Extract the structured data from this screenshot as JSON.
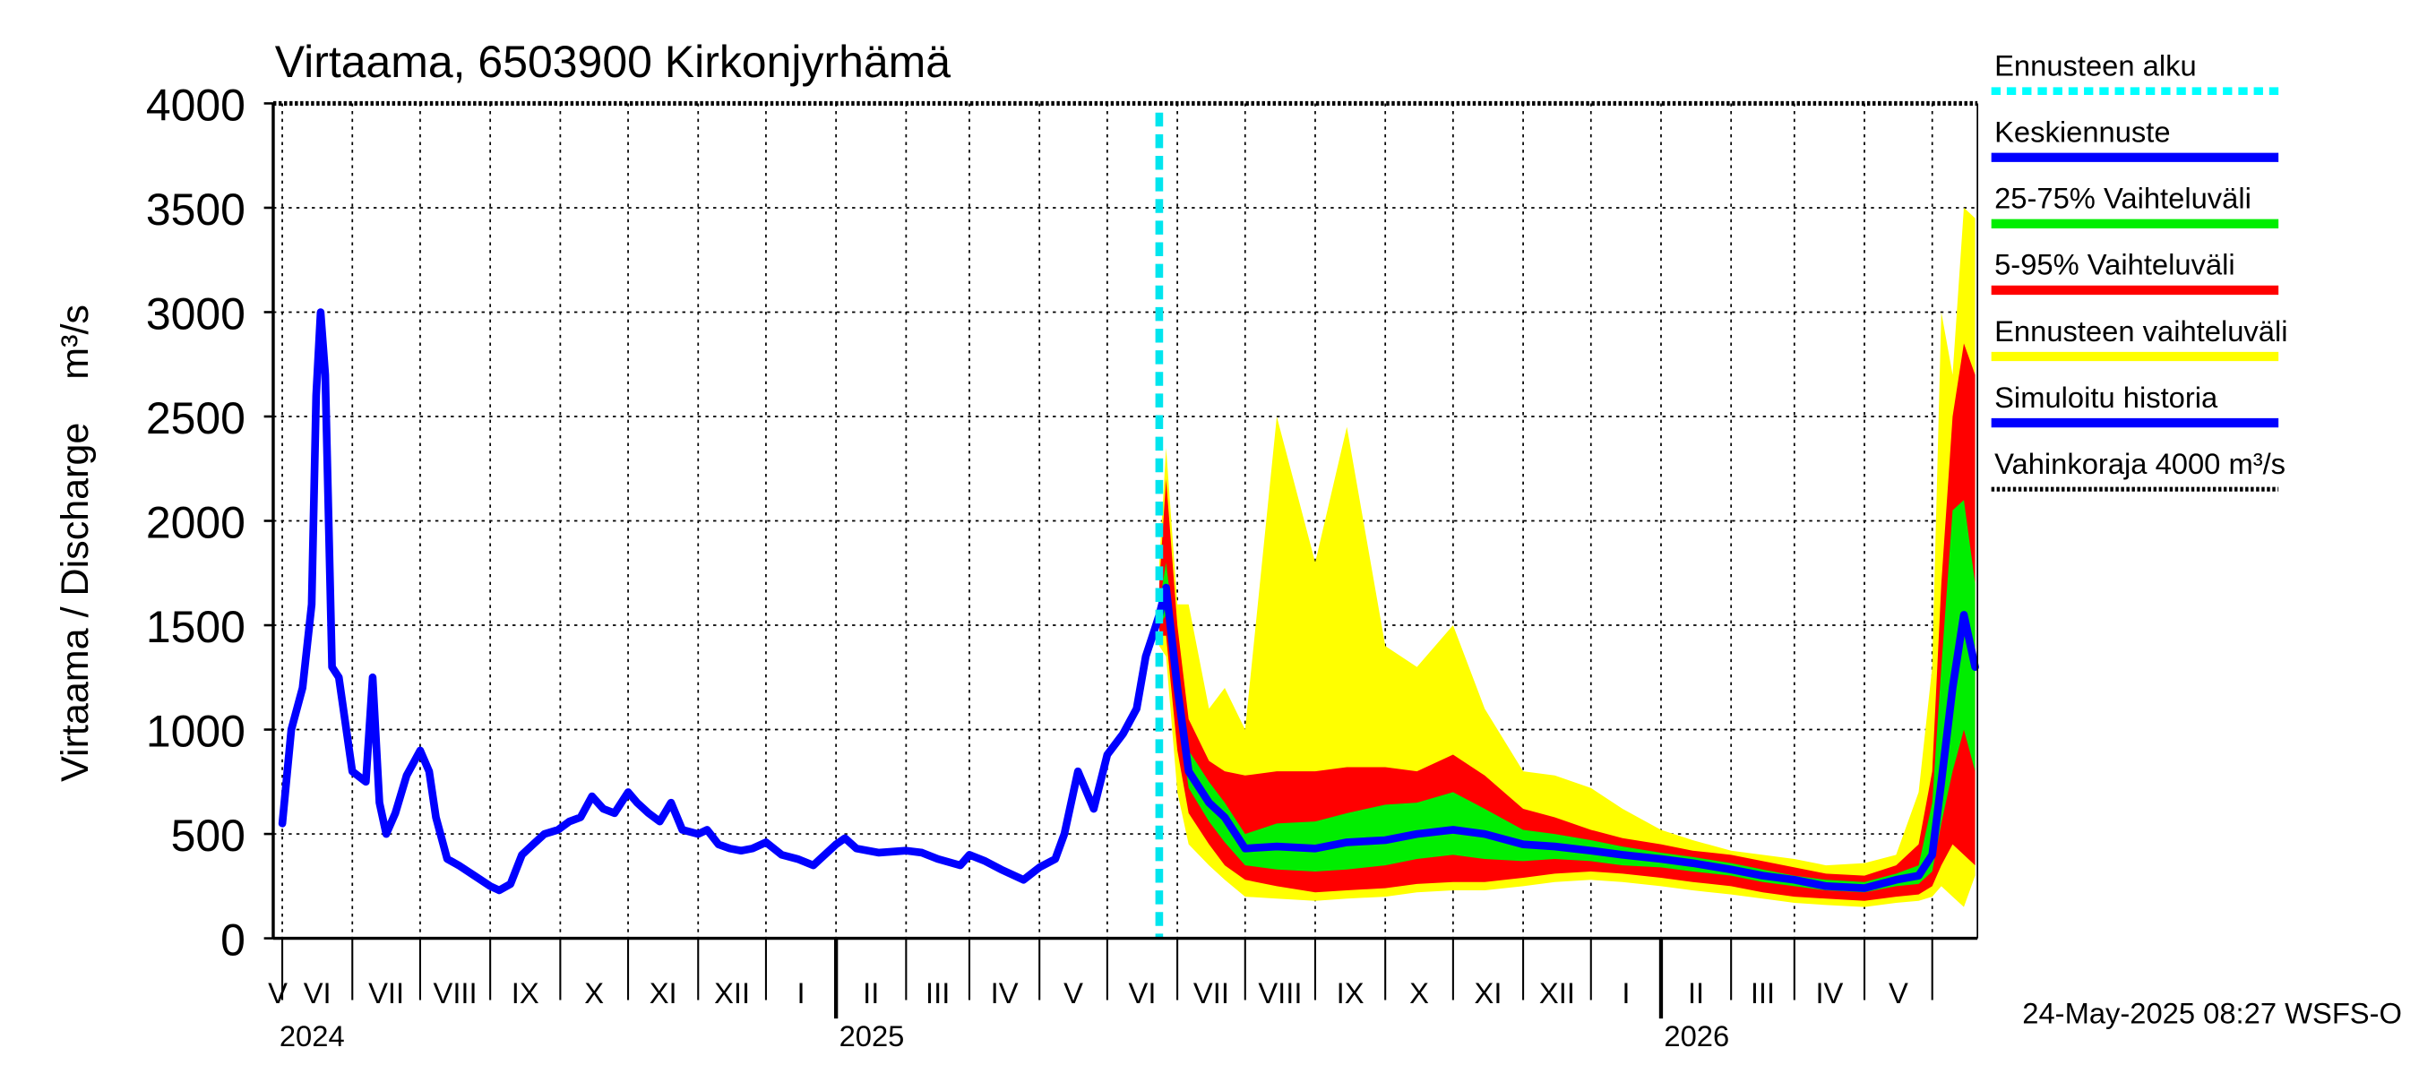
{
  "chart_data": {
    "type": "area",
    "title": "Virtaama, 6503900 Kirkonjyrhämä",
    "ylabel": "Virtaama / Discharge    m³/s",
    "ylim": [
      0,
      4000
    ],
    "yticks": [
      "0",
      "500",
      "1000",
      "1500",
      "2000",
      "2500",
      "3000",
      "3500",
      "4000"
    ],
    "month_labels": [
      "V",
      "VI",
      "VII",
      "VIII",
      "IX",
      "X",
      "XI",
      "XII",
      "I",
      "II",
      "III",
      "IV",
      "V",
      "VI",
      "VII",
      "VIII",
      "IX",
      "X",
      "XI",
      "XII",
      "I",
      "II",
      "III",
      "IV",
      "V"
    ],
    "year_labels": [
      "2024",
      "2025",
      "2026"
    ],
    "forecast_start": "2025-05-24",
    "damage_limit": 4000,
    "timestamp": "24-May-2025 08:27 WSFS-O",
    "legend": [
      {
        "label": "Ennusteen alku",
        "color": "#00ffff",
        "style": "dotted"
      },
      {
        "label": "Keskiennuste",
        "color": "#0000ff",
        "style": "solid"
      },
      {
        "label": "25-75% Vaihteluväli",
        "color": "#00ee00",
        "style": "solid"
      },
      {
        "label": "5-95% Vaihteluväli",
        "color": "#ff0000",
        "style": "solid"
      },
      {
        "label": "Ennusteen vaihteluväli",
        "color": "#ffff00",
        "style": "solid"
      },
      {
        "label": "Simuloitu historia",
        "color": "#0000ff",
        "style": "solid"
      },
      {
        "label": "Vahinkoraja 4000 m³/s",
        "color": "#000000",
        "style": "dotted-thin"
      }
    ],
    "history": {
      "name": "Simuloitu historia",
      "x": [
        "2024-05-01",
        "2024-05-05",
        "2024-05-10",
        "2024-05-14",
        "2024-05-16",
        "2024-05-18",
        "2024-05-20",
        "2024-05-23",
        "2024-05-26",
        "2024-06-01",
        "2024-06-07",
        "2024-06-10",
        "2024-06-13",
        "2024-06-16",
        "2024-06-20",
        "2024-06-25",
        "2024-07-01",
        "2024-07-05",
        "2024-07-08",
        "2024-07-13",
        "2024-07-18",
        "2024-07-25",
        "2024-08-01",
        "2024-08-05",
        "2024-08-10",
        "2024-08-15",
        "2024-08-20",
        "2024-08-25",
        "2024-08-31",
        "2024-09-05",
        "2024-09-10",
        "2024-09-15",
        "2024-09-20",
        "2024-09-25",
        "2024-10-01",
        "2024-10-05",
        "2024-10-10",
        "2024-10-15",
        "2024-10-20",
        "2024-10-25",
        "2024-11-01",
        "2024-11-05",
        "2024-11-10",
        "2024-11-15",
        "2024-11-20",
        "2024-11-25",
        "2024-12-01",
        "2024-12-08",
        "2024-12-15",
        "2024-12-22",
        "2025-01-01",
        "2025-01-05",
        "2025-01-10",
        "2025-01-20",
        "2025-02-01",
        "2025-02-08",
        "2025-02-15",
        "2025-02-25",
        "2025-03-01",
        "2025-03-08",
        "2025-03-15",
        "2025-03-25",
        "2025-04-01",
        "2025-04-08",
        "2025-04-12",
        "2025-04-18",
        "2025-04-25",
        "2025-05-01",
        "2025-05-08",
        "2025-05-14",
        "2025-05-18",
        "2025-05-22",
        "2025-05-24"
      ],
      "y": [
        550,
        1000,
        1200,
        1600,
        2600,
        3000,
        2700,
        1300,
        1250,
        800,
        750,
        1250,
        650,
        500,
        600,
        780,
        900,
        800,
        580,
        380,
        350,
        300,
        250,
        230,
        260,
        400,
        450,
        500,
        520,
        560,
        580,
        680,
        620,
        600,
        700,
        650,
        600,
        560,
        650,
        520,
        500,
        520,
        450,
        430,
        420,
        430,
        460,
        400,
        380,
        350,
        450,
        480,
        430,
        410,
        420,
        410,
        380,
        350,
        400,
        370,
        330,
        280,
        340,
        380,
        500,
        800,
        620,
        880,
        980,
        1100,
        1350,
        1480,
        1550
      ]
    },
    "forecast": {
      "x": [
        "2025-05-24",
        "2025-05-27",
        "2025-06-01",
        "2025-06-06",
        "2025-06-15",
        "2025-06-22",
        "2025-07-01",
        "2025-07-15",
        "2025-08-01",
        "2025-08-15",
        "2025-09-01",
        "2025-09-15",
        "2025-10-01",
        "2025-10-15",
        "2025-11-01",
        "2025-11-15",
        "2025-12-01",
        "2025-12-15",
        "2026-01-01",
        "2026-01-15",
        "2026-02-01",
        "2026-02-15",
        "2026-03-01",
        "2026-03-15",
        "2026-04-01",
        "2026-04-15",
        "2026-04-25",
        "2026-05-01",
        "2026-05-05",
        "2026-05-10",
        "2026-05-15",
        "2026-05-20"
      ],
      "median": [
        1550,
        1680,
        1200,
        800,
        650,
        580,
        430,
        440,
        430,
        460,
        470,
        500,
        520,
        500,
        450,
        440,
        420,
        400,
        380,
        360,
        330,
        300,
        280,
        250,
        240,
        280,
        300,
        400,
        750,
        1200,
        1550,
        1300
      ],
      "p25": [
        1500,
        1550,
        1100,
        720,
        560,
        460,
        350,
        330,
        320,
        330,
        350,
        380,
        400,
        380,
        370,
        380,
        370,
        350,
        340,
        320,
        300,
        270,
        250,
        230,
        220,
        250,
        260,
        320,
        550,
        800,
        1000,
        800
      ],
      "p75": [
        1600,
        1800,
        1350,
        900,
        750,
        650,
        500,
        550,
        560,
        600,
        640,
        650,
        700,
        620,
        520,
        500,
        470,
        440,
        410,
        390,
        360,
        330,
        300,
        280,
        270,
        310,
        350,
        650,
        1300,
        2050,
        2100,
        1700
      ],
      "p5": [
        1450,
        1450,
        900,
        600,
        450,
        350,
        280,
        250,
        220,
        230,
        240,
        260,
        270,
        270,
        290,
        310,
        320,
        310,
        290,
        270,
        250,
        220,
        200,
        190,
        180,
        200,
        210,
        250,
        350,
        450,
        400,
        350
      ],
      "p95": [
        1700,
        2200,
        1500,
        1050,
        850,
        800,
        780,
        800,
        800,
        820,
        820,
        800,
        880,
        780,
        620,
        580,
        520,
        480,
        450,
        420,
        400,
        370,
        340,
        310,
        300,
        350,
        450,
        800,
        1700,
        2500,
        2850,
        2700
      ],
      "min": [
        1400,
        1350,
        700,
        450,
        350,
        280,
        200,
        190,
        180,
        190,
        200,
        220,
        230,
        230,
        250,
        270,
        280,
        270,
        250,
        230,
        210,
        190,
        170,
        160,
        150,
        170,
        180,
        200,
        250,
        200,
        150,
        300
      ],
      "max": [
        1800,
        2350,
        1600,
        1600,
        1100,
        1200,
        1000,
        2500,
        1800,
        2450,
        1400,
        1300,
        1500,
        1100,
        800,
        780,
        720,
        620,
        520,
        470,
        420,
        400,
        380,
        350,
        360,
        400,
        700,
        1300,
        3000,
        2700,
        3500,
        3450
      ]
    }
  }
}
